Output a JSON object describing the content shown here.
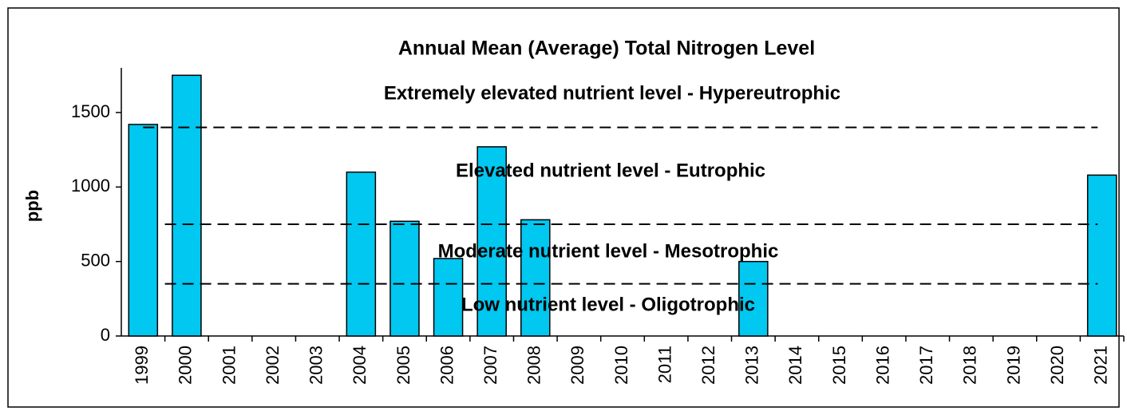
{
  "chart_data": {
    "type": "bar",
    "title": "Annual Mean (Average) Total Nitrogen Level",
    "y_label": "ppb",
    "categories": [
      "1999",
      "2000",
      "2001",
      "2002",
      "2003",
      "2004",
      "2005",
      "2006",
      "2007",
      "2008",
      "2009",
      "2010",
      "2011",
      "2012",
      "2013",
      "2014",
      "2015",
      "2016",
      "2017",
      "2018",
      "2019",
      "2020",
      "2021"
    ],
    "values": [
      1420,
      1750,
      null,
      null,
      null,
      1100,
      770,
      520,
      1270,
      780,
      null,
      null,
      null,
      null,
      500,
      null,
      null,
      null,
      null,
      null,
      null,
      null,
      1080
    ],
    "color": "#00c8f0",
    "ylim": [
      0,
      1800
    ],
    "yticks": [
      0,
      500,
      1000,
      1500
    ],
    "grid": false,
    "thresholds": [
      1400,
      750,
      350
    ],
    "annotations": [
      "Extremely elevated nutrient level - Hypereutrophic",
      "Elevated nutrient level - Eutrophic",
      "Moderate nutrient level - Mesotrophic",
      "Low nutrient level - Oligotrophic"
    ]
  }
}
